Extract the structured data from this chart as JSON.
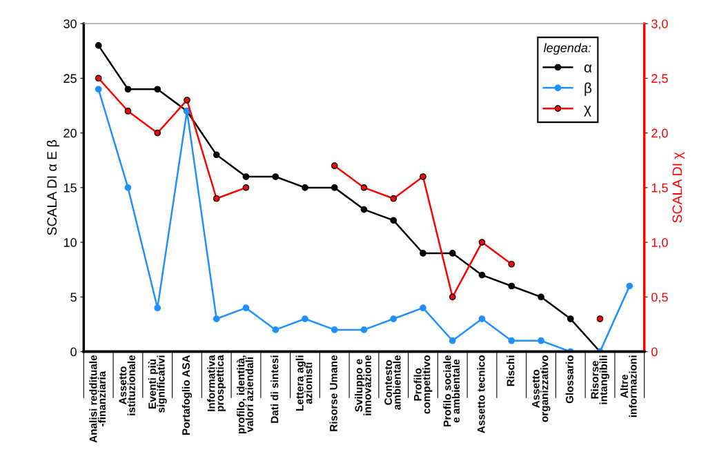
{
  "chart_data": {
    "type": "line",
    "ylabel": "SCALA DI α E β",
    "y2label": "SCALA DI χ",
    "legend_title": "legenda:",
    "legend": "top right",
    "marker": "circle",
    "line_style": "solid",
    "grid": false,
    "categories": [
      "Analisi reddituale\n-finanziaria",
      "Assetto\nistituzionale",
      "Eventi più\nsignificativi",
      "Portafoglio ASA",
      "Informativa\nprospettica",
      "profilo, identità,\nvalori aziendali",
      "Dati di sintesi",
      "Lettera agli\nazionisti",
      "Risorse Umane",
      "Sviluppo e\ninnovazione",
      "Contesto\nambientale",
      "Profilo\ncompetitivo",
      "Profilo sociale\ne ambientale",
      "Assetto tecnico",
      "Rischi",
      "Assetto\norganizzativo",
      "Glossario",
      "Risorse\nintangibili",
      "Altre\ninformazioni"
    ],
    "series": [
      {
        "name": "α",
        "color": "#000000",
        "values": [
          28,
          24,
          24,
          22,
          18,
          16,
          16,
          15,
          15,
          13,
          12,
          9,
          9,
          7,
          6,
          5,
          3,
          0,
          null
        ]
      },
      {
        "name": "β",
        "color": "#1e90ff",
        "values": [
          24,
          15,
          4,
          22,
          3,
          4,
          2,
          3,
          2,
          2,
          3,
          4,
          1,
          3,
          1,
          1,
          0,
          0,
          6
        ]
      },
      {
        "name": "χ",
        "color": "#ff0000",
        "axis": "y2",
        "values": [
          2.5,
          2.2,
          2.0,
          2.3,
          1.4,
          1.5,
          null,
          null,
          1.7,
          1.5,
          1.4,
          1.6,
          0.5,
          1.0,
          0.8,
          null,
          null,
          0.3,
          null
        ]
      }
    ],
    "ylim": [
      0,
      30
    ],
    "yticks": [
      0,
      5,
      10,
      15,
      20,
      25,
      30
    ],
    "y2lim": [
      0,
      3
    ],
    "y2ticks": [
      {
        "value": 0,
        "label": "0"
      },
      {
        "value": 0.5,
        "label": "0,5"
      },
      {
        "value": 1,
        "label": "1,0"
      },
      {
        "value": 1.5,
        "label": "1,5"
      },
      {
        "value": 2,
        "label": "2,0"
      },
      {
        "value": 2.5,
        "label": "2,5"
      },
      {
        "value": 3,
        "label": "3,0"
      }
    ]
  }
}
